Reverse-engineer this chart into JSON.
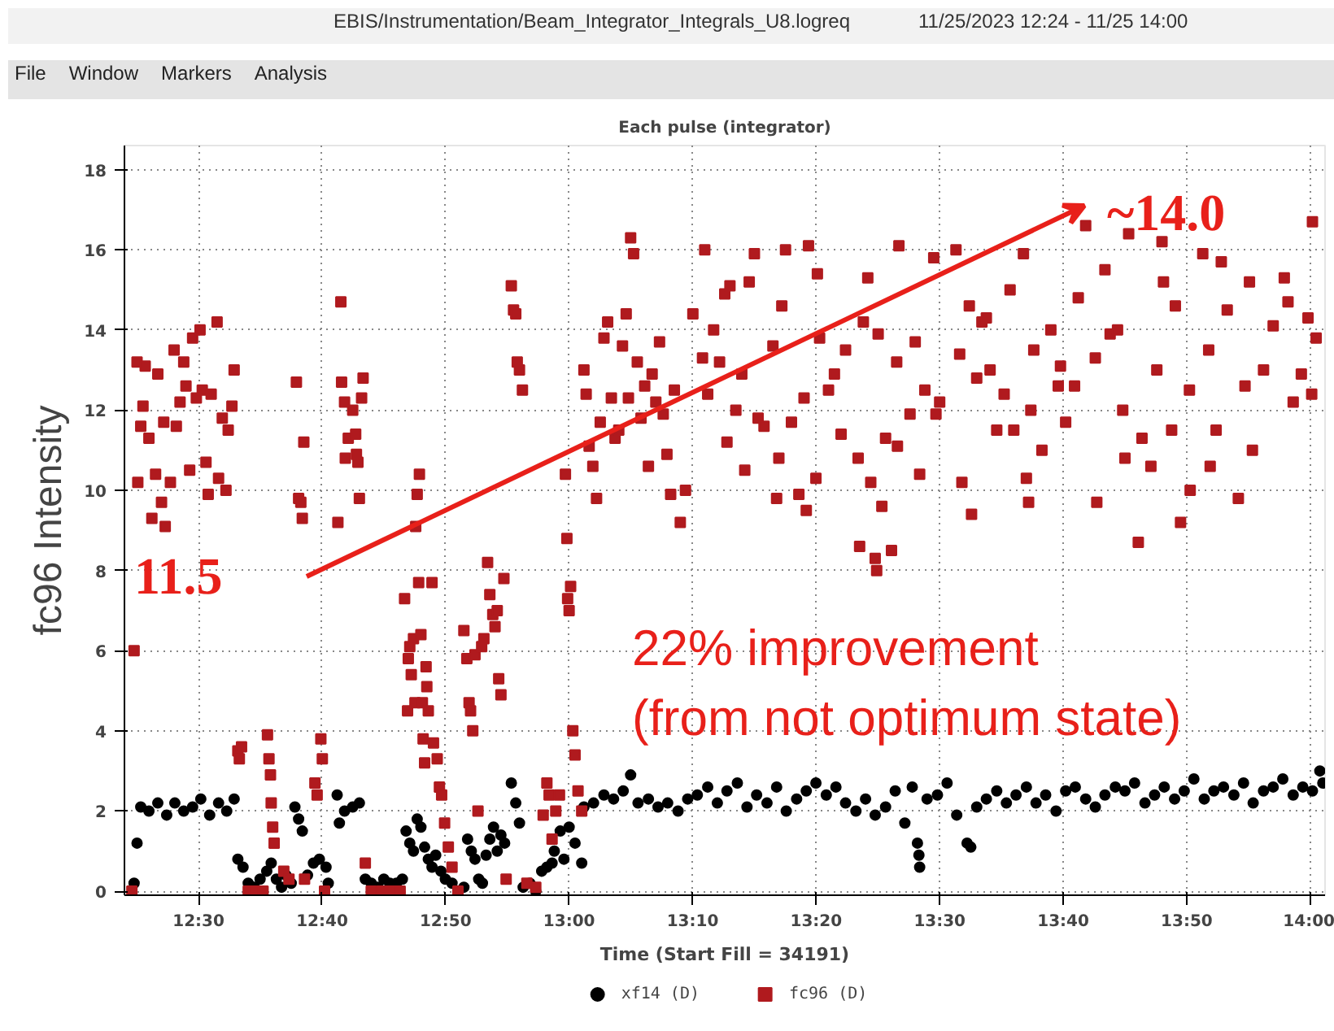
{
  "chart_data": {
    "type": "scatter",
    "title": "Each pulse (integrator)",
    "xlabel": "Time (Start Fill = 34191)",
    "ylabel": "fc96 Intensity",
    "xlim": [
      12.4,
      14.02
    ],
    "ylim": [
      -0.1,
      18.6
    ],
    "xticks": [
      {
        "value": 12.5,
        "label": "12:30"
      },
      {
        "value": 12.6667,
        "label": "12:40"
      },
      {
        "value": 12.8333,
        "label": "12:50"
      },
      {
        "value": 13.0,
        "label": "13:00"
      },
      {
        "value": 13.1667,
        "label": "13:10"
      },
      {
        "value": 13.3333,
        "label": "13:20"
      },
      {
        "value": 13.5,
        "label": "13:30"
      },
      {
        "value": 13.6667,
        "label": "13:40"
      },
      {
        "value": 13.8333,
        "label": "13:50"
      },
      {
        "value": 14.0,
        "label": "14:00"
      }
    ],
    "yticks": [
      0,
      2,
      4,
      6,
      8,
      10,
      12,
      14,
      16,
      18
    ],
    "grid": true,
    "legend": "bottom",
    "annotations": [
      "EBIS/Instrumentation/Beam_Integrator_Integrals_U8.logreq",
      "11/25/2023 12:24 - 11/25 14:00",
      "File",
      "Window",
      "Markers",
      "Analysis",
      "22% improvement",
      "(from not optimum state)",
      "11.5",
      "~14.0"
    ],
    "series": [
      {
        "name": "xf14 (D)",
        "color": "#000000",
        "marker": "circle",
        "x": [
          12.413,
          12.417,
          12.422,
          12.433,
          12.445,
          12.457,
          12.468,
          12.48,
          12.492,
          12.503,
          12.515,
          12.527,
          12.538,
          12.548,
          12.553,
          12.56,
          12.567,
          12.575,
          12.583,
          12.592,
          12.598,
          12.605,
          12.612,
          12.618,
          12.625,
          12.63,
          12.635,
          12.64,
          12.647,
          12.655,
          12.663,
          12.672,
          12.675,
          12.687,
          12.69,
          12.697,
          12.708,
          12.717,
          12.725,
          12.733,
          12.742,
          12.75,
          12.758,
          12.767,
          12.775,
          12.78,
          12.785,
          12.79,
          12.795,
          12.8,
          12.805,
          12.81,
          12.815,
          12.82,
          12.827,
          12.833,
          12.842,
          12.858,
          12.863,
          12.868,
          12.873,
          12.878,
          12.883,
          12.888,
          12.893,
          12.898,
          12.903,
          12.908,
          12.913,
          12.922,
          12.928,
          12.933,
          12.938,
          12.947,
          12.955,
          12.963,
          12.97,
          12.977,
          12.98,
          12.988,
          12.993,
          13.0,
          13.008,
          13.017,
          13.02,
          13.033,
          13.047,
          13.06,
          13.073,
          13.083,
          13.093,
          13.107,
          13.12,
          13.133,
          13.147,
          13.16,
          13.173,
          13.187,
          13.2,
          13.213,
          13.227,
          13.24,
          13.253,
          13.267,
          13.28,
          13.293,
          13.307,
          13.32,
          13.333,
          13.347,
          13.36,
          13.373,
          13.387,
          13.4,
          13.413,
          13.427,
          13.44,
          13.453,
          13.463,
          13.47,
          13.472,
          13.473,
          13.483,
          13.497,
          13.51,
          13.523,
          13.537,
          13.542,
          13.55,
          13.563,
          13.577,
          13.59,
          13.603,
          13.617,
          13.63,
          13.643,
          13.657,
          13.67,
          13.683,
          13.697,
          13.71,
          13.723,
          13.737,
          13.75,
          13.763,
          13.777,
          13.79,
          13.803,
          13.817,
          13.83,
          13.843,
          13.857,
          13.87,
          13.883,
          13.897,
          13.91,
          13.923,
          13.937,
          13.95,
          13.963,
          13.977,
          13.99,
          14.003,
          14.013,
          14.017
        ],
        "values": [
          0.2,
          1.2,
          2.1,
          2.0,
          2.2,
          1.9,
          2.2,
          2.0,
          2.1,
          2.3,
          1.9,
          2.2,
          2.0,
          2.3,
          0.8,
          0.6,
          0.2,
          0.1,
          0.3,
          0.5,
          0.7,
          0.3,
          0.1,
          0.4,
          0.2,
          2.1,
          1.8,
          1.5,
          0.4,
          0.7,
          0.8,
          0.6,
          0.2,
          2.4,
          1.7,
          2.0,
          2.1,
          2.2,
          0.3,
          0.2,
          0.1,
          0.3,
          0.2,
          0.2,
          0.3,
          1.5,
          1.2,
          1.0,
          1.8,
          1.6,
          1.1,
          0.8,
          0.6,
          0.9,
          0.5,
          0.3,
          0.2,
          0.1,
          1.3,
          1.0,
          0.8,
          0.3,
          0.2,
          0.9,
          1.3,
          1.6,
          1.0,
          1.4,
          1.2,
          2.7,
          2.2,
          1.7,
          0.1,
          0.2,
          0.0,
          0.5,
          0.6,
          0.7,
          1.0,
          1.5,
          0.8,
          1.6,
          1.2,
          0.7,
          2.1,
          2.2,
          2.4,
          2.3,
          2.5,
          2.9,
          2.2,
          2.3,
          2.1,
          2.2,
          2.0,
          2.3,
          2.4,
          2.6,
          2.2,
          2.5,
          2.7,
          2.1,
          2.4,
          2.2,
          2.6,
          2.0,
          2.3,
          2.5,
          2.7,
          2.4,
          2.6,
          2.2,
          2.0,
          2.3,
          1.9,
          2.1,
          2.5,
          1.7,
          2.6,
          1.2,
          0.9,
          0.6,
          2.3,
          2.4,
          2.7,
          1.9,
          1.2,
          1.1,
          2.1,
          2.3,
          2.5,
          2.2,
          2.4,
          2.6,
          2.2,
          2.4,
          2.0,
          2.5,
          2.6,
          2.3,
          2.1,
          2.4,
          2.6,
          2.5,
          2.7,
          2.2,
          2.4,
          2.6,
          2.3,
          2.5,
          2.8,
          2.3,
          2.5,
          2.6,
          2.4,
          2.7,
          2.2,
          2.5,
          2.6,
          2.8,
          2.4,
          2.6,
          2.5,
          3.0,
          2.7
        ]
      },
      {
        "name": "fc96 (D)",
        "color": "#b01a1e",
        "marker": "square",
        "x": [
          12.41,
          12.413,
          12.417,
          12.418,
          12.422,
          12.425,
          12.428,
          12.433,
          12.437,
          12.442,
          12.445,
          12.45,
          12.453,
          12.455,
          12.462,
          12.467,
          12.47,
          12.475,
          12.48,
          12.483,
          12.488,
          12.492,
          12.497,
          12.502,
          12.505,
          12.51,
          12.513,
          12.517,
          12.525,
          12.527,
          12.532,
          12.537,
          12.54,
          12.545,
          12.548,
          12.553,
          12.555,
          12.558,
          12.567,
          12.577,
          12.587,
          12.593,
          12.595,
          12.597,
          12.598,
          12.6,
          12.602,
          12.615,
          12.622,
          12.632,
          12.635,
          12.638,
          12.64,
          12.642,
          12.643,
          12.657,
          12.66,
          12.665,
          12.667,
          12.67,
          12.688,
          12.692,
          12.693,
          12.697,
          12.698,
          12.702,
          12.708,
          12.712,
          12.713,
          12.715,
          12.717,
          12.72,
          12.722,
          12.725,
          12.733,
          12.747,
          12.76,
          12.772,
          12.778,
          12.782,
          12.783,
          12.785,
          12.787,
          12.79,
          12.792,
          12.793,
          12.795,
          12.798,
          12.797,
          12.8,
          12.802,
          12.803,
          12.805,
          12.807,
          12.808,
          12.81,
          12.815,
          12.817,
          12.822,
          12.825,
          12.828,
          12.832,
          12.837,
          12.842,
          12.85,
          12.858,
          12.862,
          12.865,
          12.867,
          12.87,
          12.873,
          12.877,
          12.882,
          12.885,
          12.89,
          12.893,
          12.897,
          12.9,
          12.903,
          12.905,
          12.908,
          12.912,
          12.915,
          12.922,
          12.925,
          12.928,
          12.93,
          12.933,
          12.937,
          12.943,
          12.955,
          12.965,
          12.97,
          12.973,
          12.977,
          12.982,
          12.987,
          12.995,
          12.997,
          12.998,
          13.0,
          13.002,
          13.005,
          13.008,
          13.012,
          13.017,
          13.02,
          13.023,
          13.027,
          13.032,
          13.037,
          13.042,
          13.047,
          13.052,
          13.057,
          13.062,
          13.067,
          13.072,
          13.077,
          13.08,
          13.083,
          13.087,
          13.092,
          13.097,
          13.102,
          13.107,
          13.112,
          13.117,
          13.122,
          13.127,
          13.132,
          13.137,
          13.142,
          13.15,
          13.157,
          13.167,
          13.18,
          13.183,
          13.187,
          13.195,
          13.203,
          13.21,
          13.213,
          13.217,
          13.225,
          13.233,
          13.237,
          13.243,
          13.25,
          13.255,
          13.263,
          13.275,
          13.28,
          13.283,
          13.287,
          13.292,
          13.3,
          13.31,
          13.317,
          13.32,
          13.323,
          13.333,
          13.335,
          13.338,
          13.35,
          13.358,
          13.367,
          13.373,
          13.39,
          13.392,
          13.397,
          13.403,
          13.407,
          13.413,
          13.415,
          13.417,
          13.422,
          13.427,
          13.435,
          13.442,
          13.443,
          13.445,
          13.46,
          13.467,
          13.473,
          13.48,
          13.492,
          13.495,
          13.5,
          13.522,
          13.527,
          13.53,
          13.54,
          13.543,
          13.55,
          13.557,
          13.563,
          13.568,
          13.577,
          13.587,
          13.595,
          13.6,
          13.613,
          13.617,
          13.62,
          13.623,
          13.627,
          13.638,
          13.65,
          13.66,
          13.663,
          13.67,
          13.682,
          13.687,
          13.697,
          13.71,
          13.712,
          13.723,
          13.73,
          13.74,
          13.747,
          13.75,
          13.755,
          13.768,
          13.773,
          13.785,
          13.793,
          13.8,
          13.802,
          13.813,
          13.818,
          13.825,
          13.837,
          13.838,
          13.855,
          13.863,
          13.865,
          13.873,
          13.88,
          13.888,
          13.903,
          13.912,
          13.918,
          13.922,
          13.937,
          13.95,
          13.965,
          13.97,
          13.977,
          13.988,
          13.997,
          14.002,
          14.003,
          14.008
        ],
        "values": [
          0.0,
          6.0,
          13.2,
          10.2,
          11.6,
          12.1,
          13.1,
          11.3,
          9.3,
          10.4,
          12.9,
          9.7,
          11.7,
          9.1,
          10.2,
          13.5,
          11.6,
          12.2,
          13.2,
          12.6,
          10.5,
          13.8,
          12.3,
          14.0,
          12.5,
          10.7,
          9.9,
          12.4,
          14.2,
          10.3,
          11.8,
          10.0,
          11.5,
          12.1,
          13.0,
          3.5,
          3.3,
          3.6,
          0.0,
          0.0,
          0.0,
          3.9,
          3.3,
          2.9,
          2.2,
          1.6,
          1.2,
          0.5,
          0.3,
          12.7,
          9.8,
          9.7,
          9.3,
          11.2,
          0.3,
          2.7,
          2.4,
          3.8,
          3.3,
          0.0,
          9.2,
          14.7,
          12.7,
          12.2,
          10.8,
          11.3,
          12.0,
          11.4,
          10.9,
          10.7,
          9.8,
          12.3,
          12.8,
          0.7,
          0.0,
          0.0,
          0.0,
          0.0,
          7.3,
          4.5,
          5.8,
          6.1,
          5.4,
          6.3,
          4.7,
          9.1,
          9.9,
          10.4,
          7.7,
          6.4,
          4.7,
          3.8,
          3.2,
          5.6,
          5.1,
          4.5,
          7.7,
          3.7,
          3.3,
          2.6,
          2.4,
          1.7,
          1.1,
          0.6,
          0.0,
          6.5,
          5.8,
          4.7,
          4.5,
          4.0,
          5.9,
          2.0,
          6.1,
          6.3,
          8.2,
          7.4,
          6.9,
          6.6,
          7.0,
          5.3,
          4.9,
          7.8,
          0.3,
          15.1,
          14.5,
          14.4,
          13.2,
          13.0,
          12.5,
          0.2,
          0.1,
          1.9,
          2.7,
          2.4,
          1.3,
          2.0,
          2.4,
          10.4,
          8.8,
          7.3,
          7.0,
          7.6,
          4.0,
          3.4,
          2.5,
          2.0,
          13.0,
          12.4,
          11.1,
          10.6,
          9.8,
          11.7,
          13.8,
          14.2,
          12.3,
          11.3,
          11.5,
          13.6,
          14.4,
          12.3,
          16.3,
          15.9,
          13.2,
          11.8,
          12.6,
          10.6,
          12.9,
          12.2,
          13.7,
          11.9,
          10.9,
          9.9,
          12.5,
          9.2,
          10.0,
          14.4,
          13.3,
          16.0,
          12.4,
          14.0,
          13.2,
          14.9,
          11.2,
          15.1,
          12.0,
          12.9,
          10.5,
          15.2,
          15.9,
          11.8,
          11.6,
          13.6,
          9.8,
          10.8,
          14.6,
          16.0,
          11.7,
          9.9,
          12.3,
          9.5,
          16.1,
          10.3,
          15.4,
          13.8,
          12.5,
          12.9,
          11.4,
          13.5,
          10.8,
          8.6,
          14.2,
          15.3,
          10.2,
          8.3,
          8.0,
          13.9,
          9.6,
          11.3,
          8.5,
          13.2,
          11.1,
          16.1,
          11.9,
          13.7,
          10.4,
          12.5,
          15.8,
          11.9,
          12.2,
          16.0,
          13.4,
          10.2,
          14.6,
          9.4,
          12.8,
          14.2,
          14.3,
          13.0,
          11.5,
          12.4,
          15.0,
          11.5,
          15.9,
          10.3,
          9.7,
          12.0,
          13.5,
          11.0,
          14.0,
          12.6,
          13.1,
          11.7,
          12.6,
          14.8,
          16.6,
          13.3,
          9.7,
          15.5,
          13.9,
          14.0,
          12.0,
          10.8,
          16.4,
          8.7,
          11.3,
          10.6,
          13.0,
          16.2,
          15.2,
          11.5,
          14.6,
          9.2,
          12.5,
          10.0,
          15.9,
          13.5,
          10.6,
          11.5,
          15.7,
          14.5,
          9.8,
          12.6,
          15.2,
          11.0,
          13.0,
          14.1,
          15.3,
          14.7,
          12.2,
          12.9,
          14.3,
          12.4,
          16.7,
          13.8
        ]
      }
    ]
  }
}
